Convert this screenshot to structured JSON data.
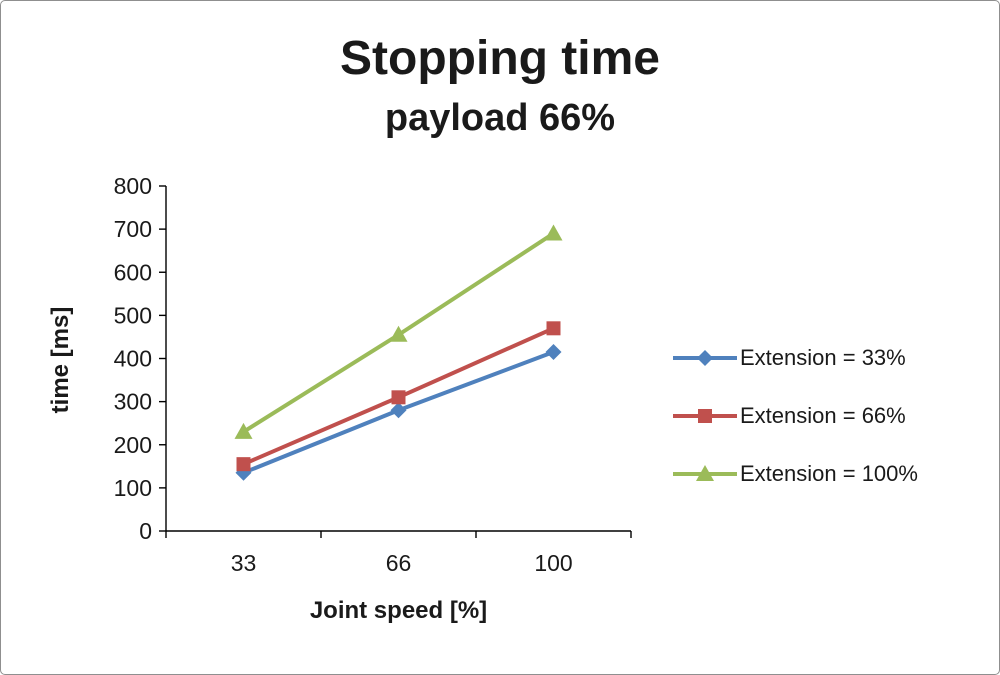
{
  "chart_data": {
    "type": "line",
    "title": "Stopping time",
    "subtitle": "payload 66%",
    "xlabel": "Joint speed [%]",
    "ylabel": "time [ms]",
    "categories": [
      "33",
      "66",
      "100"
    ],
    "ylim": [
      0,
      800
    ],
    "ytick_step": 100,
    "grid": false,
    "legend_position": "right",
    "axis_color": "#000000",
    "text_color": "#1a1a1a",
    "series": [
      {
        "name": "Extension = 33%",
        "color": "#4F81BD",
        "marker": "diamond",
        "values": [
          135,
          280,
          415
        ]
      },
      {
        "name": "Extension = 66%",
        "color": "#C0504D",
        "marker": "square",
        "values": [
          155,
          310,
          470
        ]
      },
      {
        "name": "Extension = 100%",
        "color": "#9BBB59",
        "marker": "triangle",
        "values": [
          230,
          455,
          690
        ]
      }
    ]
  }
}
